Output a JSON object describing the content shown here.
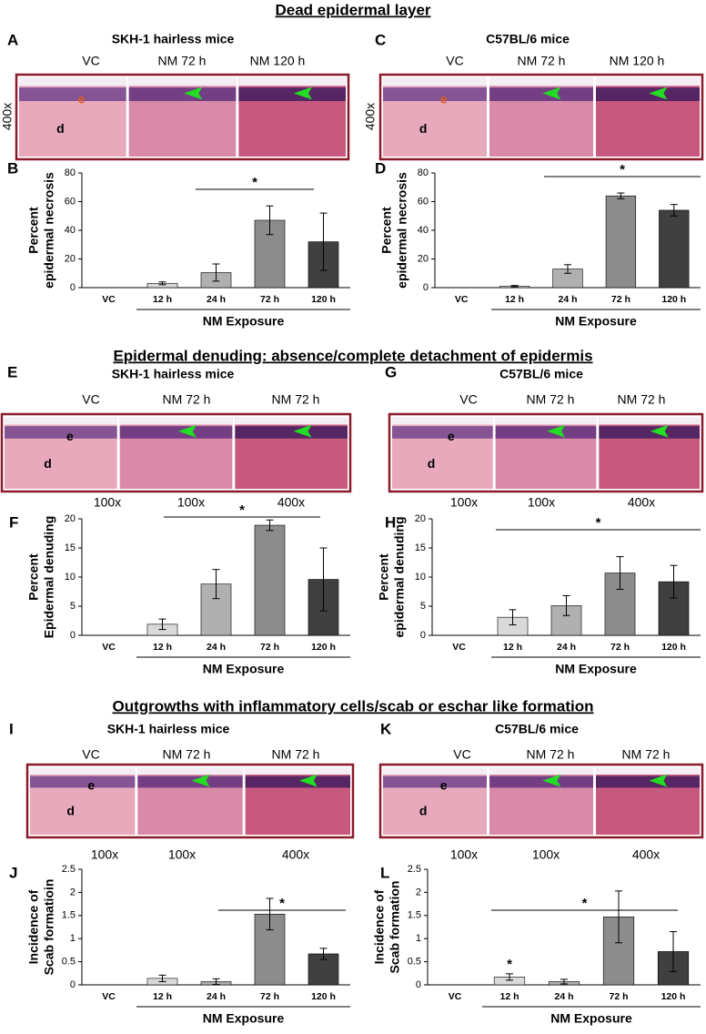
{
  "sections": [
    {
      "title": "Dead epidermal layer",
      "panels": [
        {
          "letter": "A",
          "strain": "SKH-1 hairless mice",
          "images": [
            "VC",
            "NM 72 h",
            "NM 120 h"
          ],
          "magnifications": [
            "400x"
          ],
          "tissue_labels": [
            "e",
            "d"
          ]
        },
        {
          "letter": "C",
          "strain": "C57BL/6 mice",
          "images": [
            "VC",
            "NM 72 h",
            "NM 120 h"
          ],
          "magnifications": [
            "400x"
          ],
          "tissue_labels": [
            "e",
            "d"
          ]
        }
      ]
    },
    {
      "title": "Epidermal denuding: absence/complete detachment of epidermis",
      "panels": [
        {
          "letter": "E",
          "strain": "SKH-1 hairless mice",
          "images": [
            "VC",
            "NM 72 h",
            "NM 72 h"
          ],
          "magnifications": [
            "100x",
            "100x",
            "400x"
          ],
          "tissue_labels": [
            "e",
            "d"
          ]
        },
        {
          "letter": "G",
          "strain": "C57BL/6 mice",
          "images": [
            "VC",
            "NM 72 h",
            "NM 72 h"
          ],
          "magnifications": [
            "100x",
            "100x",
            "400x"
          ],
          "tissue_labels": [
            "e",
            "d"
          ]
        }
      ]
    },
    {
      "title": "Outgrowths with inflammatory cells/scab or eschar like formation",
      "panels": [
        {
          "letter": "I",
          "strain": "SKH-1 hairless mice",
          "images": [
            "VC",
            "NM 72 h",
            "NM 72 h"
          ],
          "magnifications": [
            "100x",
            "100x",
            "400x"
          ],
          "tissue_labels": [
            "e",
            "d"
          ]
        },
        {
          "letter": "K",
          "strain": "C57BL/6 mice",
          "images": [
            "VC",
            "NM 72 h",
            "NM 72 h"
          ],
          "magnifications": [
            "100x",
            "100x",
            "400x"
          ],
          "tissue_labels": [
            "e",
            "d"
          ]
        }
      ]
    }
  ],
  "chart_data": [
    {
      "type": "bar",
      "panel": "B",
      "categories": [
        "VC",
        "12 h",
        "24 h",
        "72 h",
        "120 h"
      ],
      "values": [
        0,
        3,
        10.5,
        47,
        32
      ],
      "errors": [
        0,
        1,
        6,
        10,
        20
      ],
      "colors": [
        "#ffffff",
        "#d9d9d9",
        "#b0b0b0",
        "#8c8c8c",
        "#404040"
      ],
      "ylabel": [
        "Percent",
        "epidermal necrosis"
      ],
      "xlabel": "NM Exposure",
      "ylim": [
        0,
        80
      ],
      "yticks": [
        0,
        20,
        40,
        60,
        80
      ],
      "annotations": [
        "*"
      ]
    },
    {
      "type": "bar",
      "panel": "D",
      "categories": [
        "VC",
        "12 h",
        "24 h",
        "72 h",
        "120 h"
      ],
      "values": [
        0,
        1,
        13,
        64,
        54
      ],
      "errors": [
        0,
        0.5,
        3,
        2,
        4
      ],
      "colors": [
        "#ffffff",
        "#d9d9d9",
        "#b0b0b0",
        "#8c8c8c",
        "#404040"
      ],
      "ylabel": [
        "Percent",
        "epidermal necrosis"
      ],
      "xlabel": "NM Exposure",
      "ylim": [
        0,
        80
      ],
      "yticks": [
        0,
        20,
        40,
        60,
        80
      ],
      "annotations": [
        "*"
      ]
    },
    {
      "type": "bar",
      "panel": "F",
      "categories": [
        "VC",
        "12 h",
        "24 h",
        "72 h",
        "120 h"
      ],
      "values": [
        0,
        1.9,
        8.8,
        18.9,
        9.6
      ],
      "errors": [
        0,
        0.9,
        2.5,
        0.9,
        5.4
      ],
      "colors": [
        "#ffffff",
        "#d9d9d9",
        "#b0b0b0",
        "#8c8c8c",
        "#404040"
      ],
      "ylabel": [
        "Percent",
        "Epidermal denuding"
      ],
      "xlabel": "NM Exposure",
      "ylim": [
        0,
        20
      ],
      "yticks": [
        0,
        5,
        10,
        15,
        20
      ],
      "annotations": [
        "*"
      ]
    },
    {
      "type": "bar",
      "panel": "H",
      "categories": [
        "VC",
        "12 h",
        "24 h",
        "72 h",
        "120 h"
      ],
      "values": [
        0,
        3.1,
        5.1,
        10.7,
        9.2
      ],
      "errors": [
        0,
        1.3,
        1.7,
        2.8,
        2.8
      ],
      "colors": [
        "#ffffff",
        "#d9d9d9",
        "#b0b0b0",
        "#8c8c8c",
        "#404040"
      ],
      "ylabel": [
        "Percent",
        "epidermal denuding"
      ],
      "xlabel": "NM Exposure",
      "ylim": [
        0,
        20
      ],
      "yticks": [
        0,
        5,
        10,
        15,
        20
      ],
      "annotations": [
        "*"
      ]
    },
    {
      "type": "bar",
      "panel": "J",
      "categories": [
        "VC",
        "12 h",
        "24 h",
        "72 h",
        "120 h"
      ],
      "values": [
        0,
        0.14,
        0.07,
        1.53,
        0.67
      ],
      "errors": [
        0,
        0.07,
        0.06,
        0.34,
        0.12
      ],
      "colors": [
        "#ffffff",
        "#d9d9d9",
        "#b0b0b0",
        "#8c8c8c",
        "#404040"
      ],
      "ylabel": [
        "Incidence of",
        "Scab formatioin"
      ],
      "xlabel": "NM Exposure",
      "ylim": [
        0,
        2.5
      ],
      "yticks": [
        0,
        0.5,
        1,
        1.5,
        2,
        2.5
      ],
      "annotations": [
        "*"
      ]
    },
    {
      "type": "bar",
      "panel": "L",
      "categories": [
        "VC",
        "12 h",
        "24 h",
        "72 h",
        "120 h"
      ],
      "values": [
        0,
        0.17,
        0.07,
        1.47,
        0.72
      ],
      "errors": [
        0,
        0.07,
        0.05,
        0.56,
        0.43
      ],
      "colors": [
        "#ffffff",
        "#d9d9d9",
        "#b0b0b0",
        "#8c8c8c",
        "#404040"
      ],
      "ylabel": [
        "Incidence of",
        "Scab formation"
      ],
      "xlabel": "NM Exposure",
      "ylim": [
        0,
        2.5
      ],
      "yticks": [
        0,
        0.5,
        1,
        1.5,
        2,
        2.5
      ],
      "annotations": [
        "*",
        "*"
      ]
    }
  ]
}
